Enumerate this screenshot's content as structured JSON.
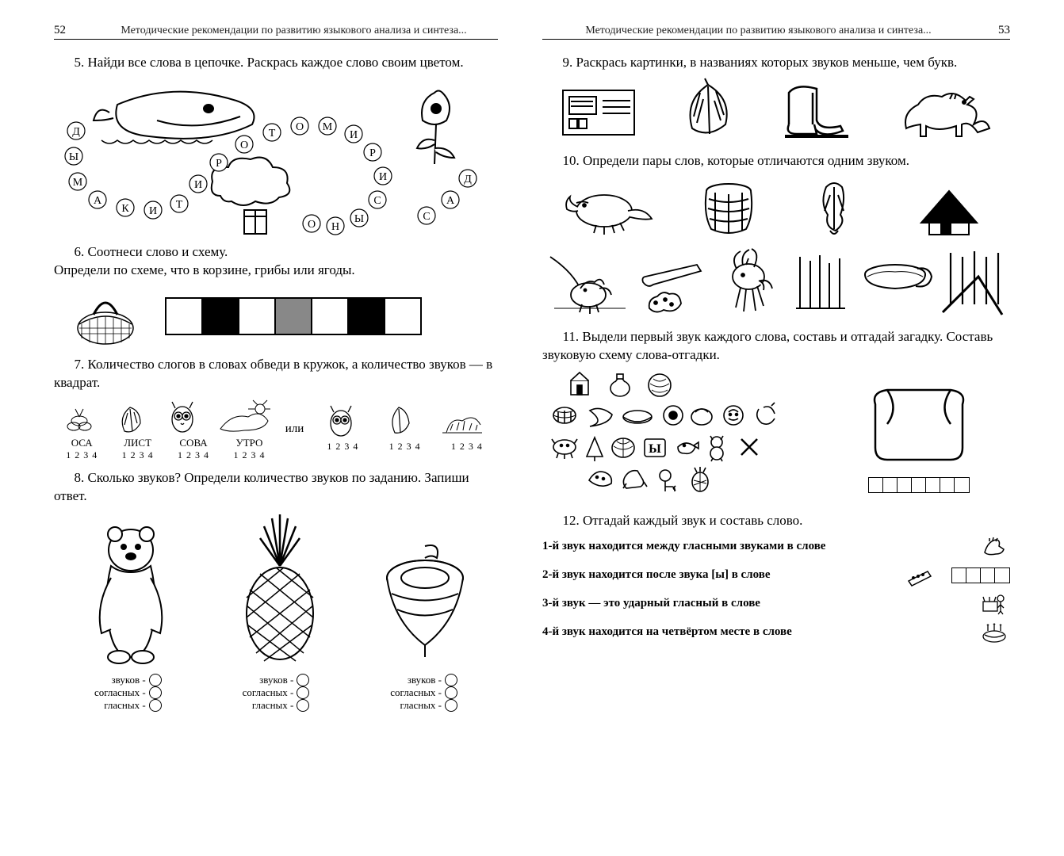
{
  "leftPage": {
    "pageNumber": "52",
    "headerTitle": "Методические рекомендации по развитию языкового анализа и синтеза...",
    "task5": "5. Найди все слова в цепочке. Раскрась каждое слово своим цветом.",
    "chainLetters": [
      "Д",
      "Ы",
      "М",
      "А",
      "К",
      "И",
      "Т",
      "И",
      "Р",
      "О",
      "Т",
      "О",
      "М",
      "И",
      "Р",
      "И",
      "С",
      "Ы",
      "Н",
      "О",
      "С",
      "А",
      "Д"
    ],
    "task6a": "6. Соотнеси слово и схему.",
    "task6b": "Определи по схеме, что в корзине, грибы или ягоды.",
    "schemaPattern": [
      "white",
      "black",
      "white",
      "gray",
      "white",
      "black",
      "white"
    ],
    "task7": "7. Количество слогов в словах обведи в кружок, а количество звуков — в квадрат.",
    "task7or": "или",
    "task7words": [
      "ОСА",
      "ЛИСТ",
      "СОВА",
      "УТРО"
    ],
    "task7nums": "1 2 3 4",
    "task8": "8. Сколько звуков? Определи количество звуков по заданию. Запиши ответ.",
    "task8labels": {
      "sounds": "звуков -",
      "consonants": "согласных -",
      "vowels": "гласных -"
    }
  },
  "rightPage": {
    "pageNumber": "53",
    "headerTitle": "Методические рекомендации по развитию языкового анализа и синтеза...",
    "task9": "9. Раскрась картинки, в названиях которых звуков меньше, чем букв.",
    "task10": "10. Определи пары слов, которые отличаются одним звуком.",
    "task11": "11. Выдели первый звук каждого слова, составь и отгадай загадку. Составь звуковую схему слова-отгадки.",
    "task12": "12. Отгадай каждый звук и составь слово.",
    "clues": [
      "1-й звук находится между гласными звуками в слове",
      "2-й звук находится после звука [ы] в слове",
      "3-й звук — это ударный гласный в слове",
      "4-й звук находится на четвёртом месте в слове"
    ]
  },
  "colors": {
    "ink": "#000000",
    "paper": "#ffffff"
  }
}
